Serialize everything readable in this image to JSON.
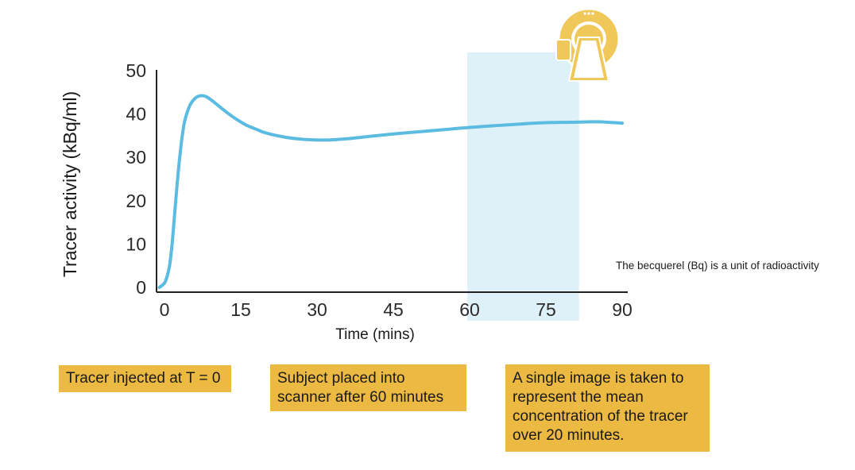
{
  "chart_data": {
    "type": "line",
    "ylabel": "Tracer activity (kBq/ml)",
    "xlabel": "Time (mins)",
    "xlim": [
      0,
      90
    ],
    "ylim": [
      0,
      50
    ],
    "xticks": [
      0,
      15,
      30,
      45,
      60,
      75,
      90
    ],
    "yticks": [
      0,
      10,
      20,
      30,
      40,
      50
    ],
    "grid": false,
    "series": [
      {
        "color": "#5bbbe0",
        "x": [
          -1,
          0,
          0.5,
          1,
          1.5,
          2,
          2.5,
          3,
          3.5,
          4,
          5,
          6,
          7,
          8,
          9,
          10,
          12,
          14,
          16,
          18,
          20,
          24,
          28,
          32,
          36,
          40,
          45,
          50,
          55,
          60,
          65,
          70,
          75,
          80,
          85,
          90
        ],
        "y": [
          0,
          1,
          2.5,
          5,
          10,
          17,
          24,
          30,
          35,
          38.5,
          42,
          43.6,
          44.2,
          44.1,
          43.4,
          42.5,
          40.6,
          38.9,
          37.5,
          36.5,
          35.6,
          34.6,
          34.1,
          34.0,
          34.3,
          34.8,
          35.4,
          35.9,
          36.4,
          36.9,
          37.3,
          37.7,
          38.0,
          38.1,
          38.2,
          37.9
        ]
      }
    ],
    "highlight_region": {
      "x": [
        60,
        82
      ],
      "color": "#dff1f8"
    }
  },
  "annotations": {
    "note": "The becquerel (Bq) is a unit of radioactivity",
    "callouts": [
      "Tracer injected at T = 0",
      "Subject placed into scanner after 60 minutes",
      "A single image is taken to represent the mean concentration of the tracer over 20 minutes."
    ]
  },
  "icons": {
    "scanner": "pet-scanner-icon"
  },
  "colors": {
    "callout_bg": "#ecb942",
    "curve": "#5bbbe0",
    "highlight": "#dff1f8",
    "scanner": "#f0c85a"
  }
}
